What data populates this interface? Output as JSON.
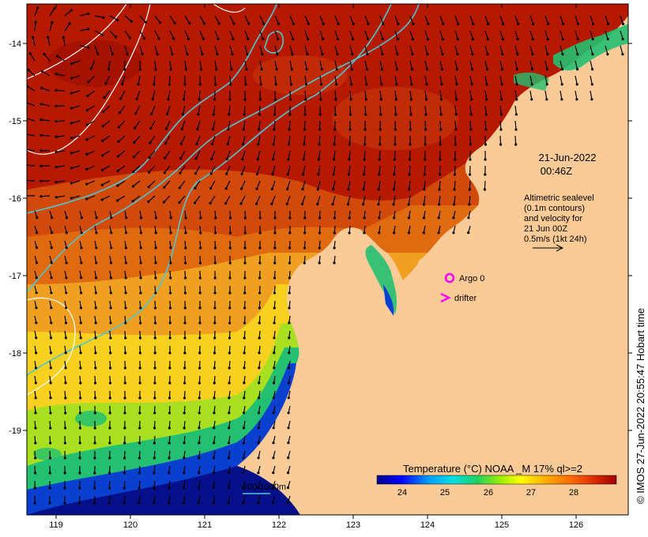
{
  "map": {
    "timestamp": {
      "date": "21-Jun-2022",
      "time": "00:46Z"
    },
    "altimetry_note": [
      "Altimetric sealevel",
      "(0.1m contours)",
      "and velocity for",
      "21 Jun 00Z",
      "0.5m/s (1kt 24h)"
    ],
    "legend_items": {
      "argo": "Argo 0",
      "drifter": "drifter"
    },
    "colorbar": {
      "title": "Temperature (°C) NOAA _M 17% ql>=2",
      "ticks": [
        "24",
        "25",
        "26",
        "27",
        "28"
      ]
    },
    "isobath_label": "200  1000m",
    "axes": {
      "x_ticks": [
        "119",
        "120",
        "121",
        "122",
        "123",
        "124",
        "125",
        "126"
      ],
      "y_ticks": [
        "-14",
        "-15",
        "-16",
        "-17",
        "-18",
        "-19"
      ]
    },
    "credit": "© IMOS 27-Jun-2022 20:55:47 Hobart time",
    "colors": {
      "land": "#FACB96",
      "isobath": "#4FC6CF",
      "sea_level_contour": "#ffffff",
      "marker": "#FF00FF"
    }
  }
}
